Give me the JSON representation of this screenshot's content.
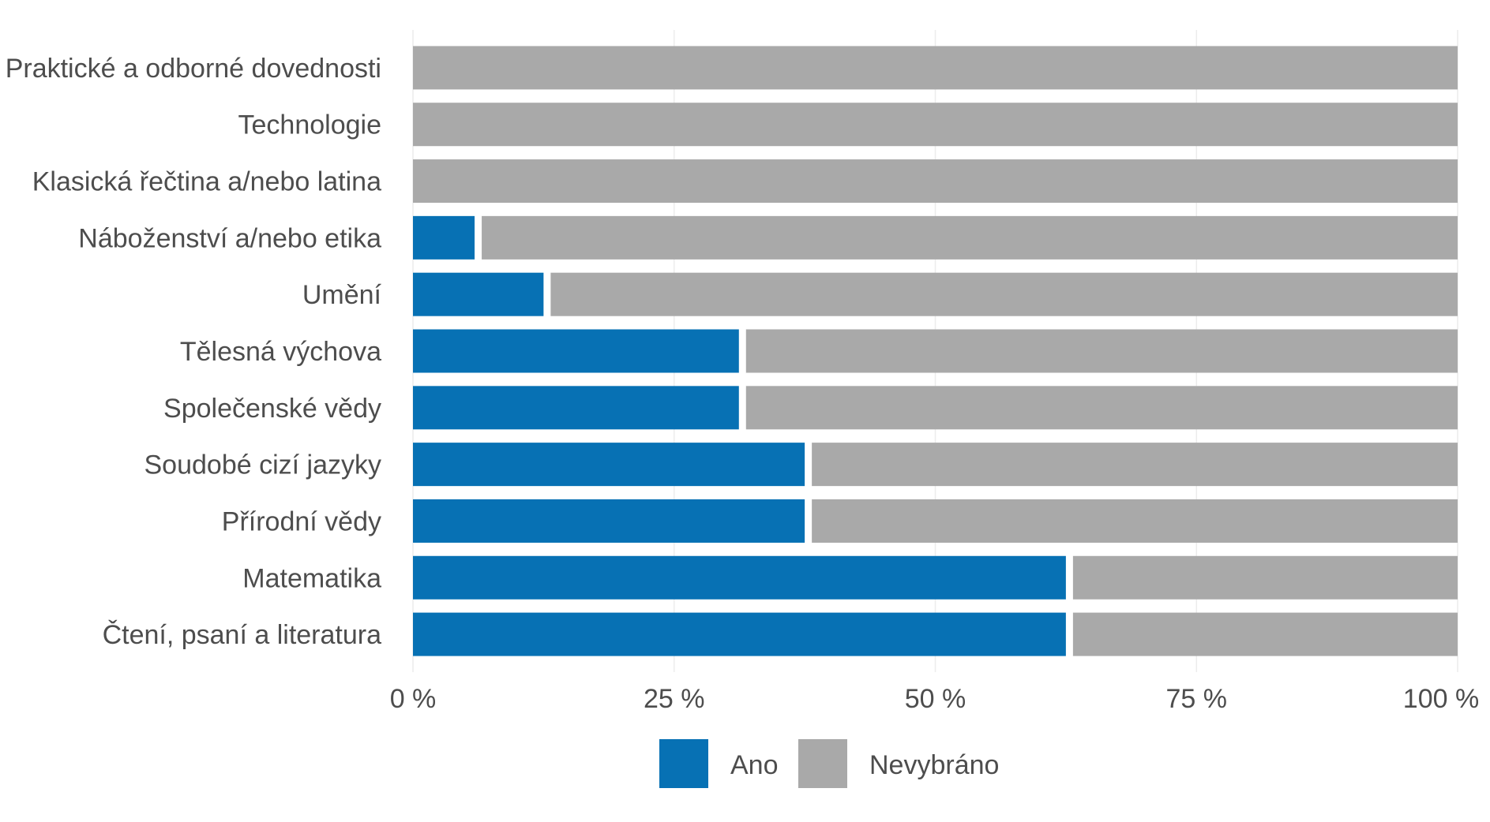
{
  "chart_data": {
    "type": "bar",
    "orientation": "horizontal",
    "stacked": true,
    "normalized": true,
    "categories": [
      "Praktické a odborné dovednosti",
      "Technologie",
      "Klasická řečtina a/nebo latina",
      "Náboženství a/nebo etika",
      "Umění",
      "Tělesná výchova",
      "Společenské vědy",
      "Soudobé cizí jazyky",
      "Přírodní vědy",
      "Matematika",
      "Čtení, psaní a literatura"
    ],
    "series": [
      {
        "name": "Ano",
        "color": "#0771b4",
        "values": [
          0,
          0,
          0,
          5.9,
          12.5,
          31.2,
          31.2,
          37.5,
          37.5,
          62.5,
          62.5
        ]
      },
      {
        "name": "Nevybráno",
        "color": "#a9a9a9",
        "values": [
          100,
          100,
          100,
          94.1,
          87.5,
          68.8,
          68.8,
          62.5,
          62.5,
          37.5,
          37.5
        ]
      }
    ],
    "xlim": [
      0,
      100
    ],
    "xticks": [
      0,
      25,
      50,
      75,
      100
    ],
    "xtick_labels": [
      "0 %",
      "25 %",
      "50 %",
      "75 %",
      "100 %"
    ],
    "grid": "vertical",
    "legend_position": "bottom",
    "title": "",
    "xlabel": "",
    "ylabel": ""
  }
}
